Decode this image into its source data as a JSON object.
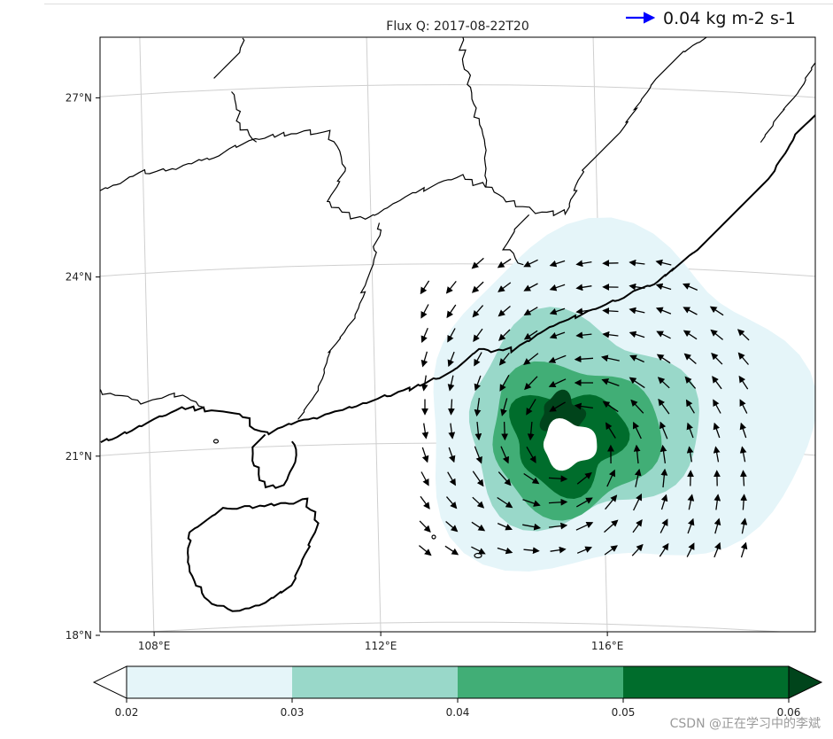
{
  "chart_data": {
    "type": "map",
    "title": "Flux Q: 2017-08-22T20",
    "quiver_key": {
      "value": 0.04,
      "label": "0.04 kg m-2 s-1",
      "color": "#0000ff"
    },
    "lon_range": [
      107,
      119.5
    ],
    "lat_range": [
      17.8,
      27.8
    ],
    "x_ticks": [
      {
        "value": 108,
        "label": "108°E"
      },
      {
        "value": 112,
        "label": "112°E"
      },
      {
        "value": 116,
        "label": "116°E"
      }
    ],
    "y_ticks": [
      {
        "value": 18,
        "label": "18°N"
      },
      {
        "value": 21,
        "label": "21°N"
      },
      {
        "value": 24,
        "label": "24°N"
      },
      {
        "value": 27,
        "label": "27°N"
      }
    ],
    "grid": true,
    "cyclone_center": {
      "lon": 115.4,
      "lat": 21.0
    },
    "colorbar": {
      "levels": [
        0.02,
        0.03,
        0.04,
        0.05,
        0.06
      ],
      "labels": [
        "0.02",
        "0.03",
        "0.04",
        "0.05",
        "0.06"
      ],
      "colors": [
        "#e5f5f9",
        "#99d8c9",
        "#41ae76",
        "#006d2c",
        "#00441b"
      ],
      "extend": "both",
      "under_color": "#ffffff"
    }
  },
  "watermark": "CSDN @正在学习中的李斌"
}
